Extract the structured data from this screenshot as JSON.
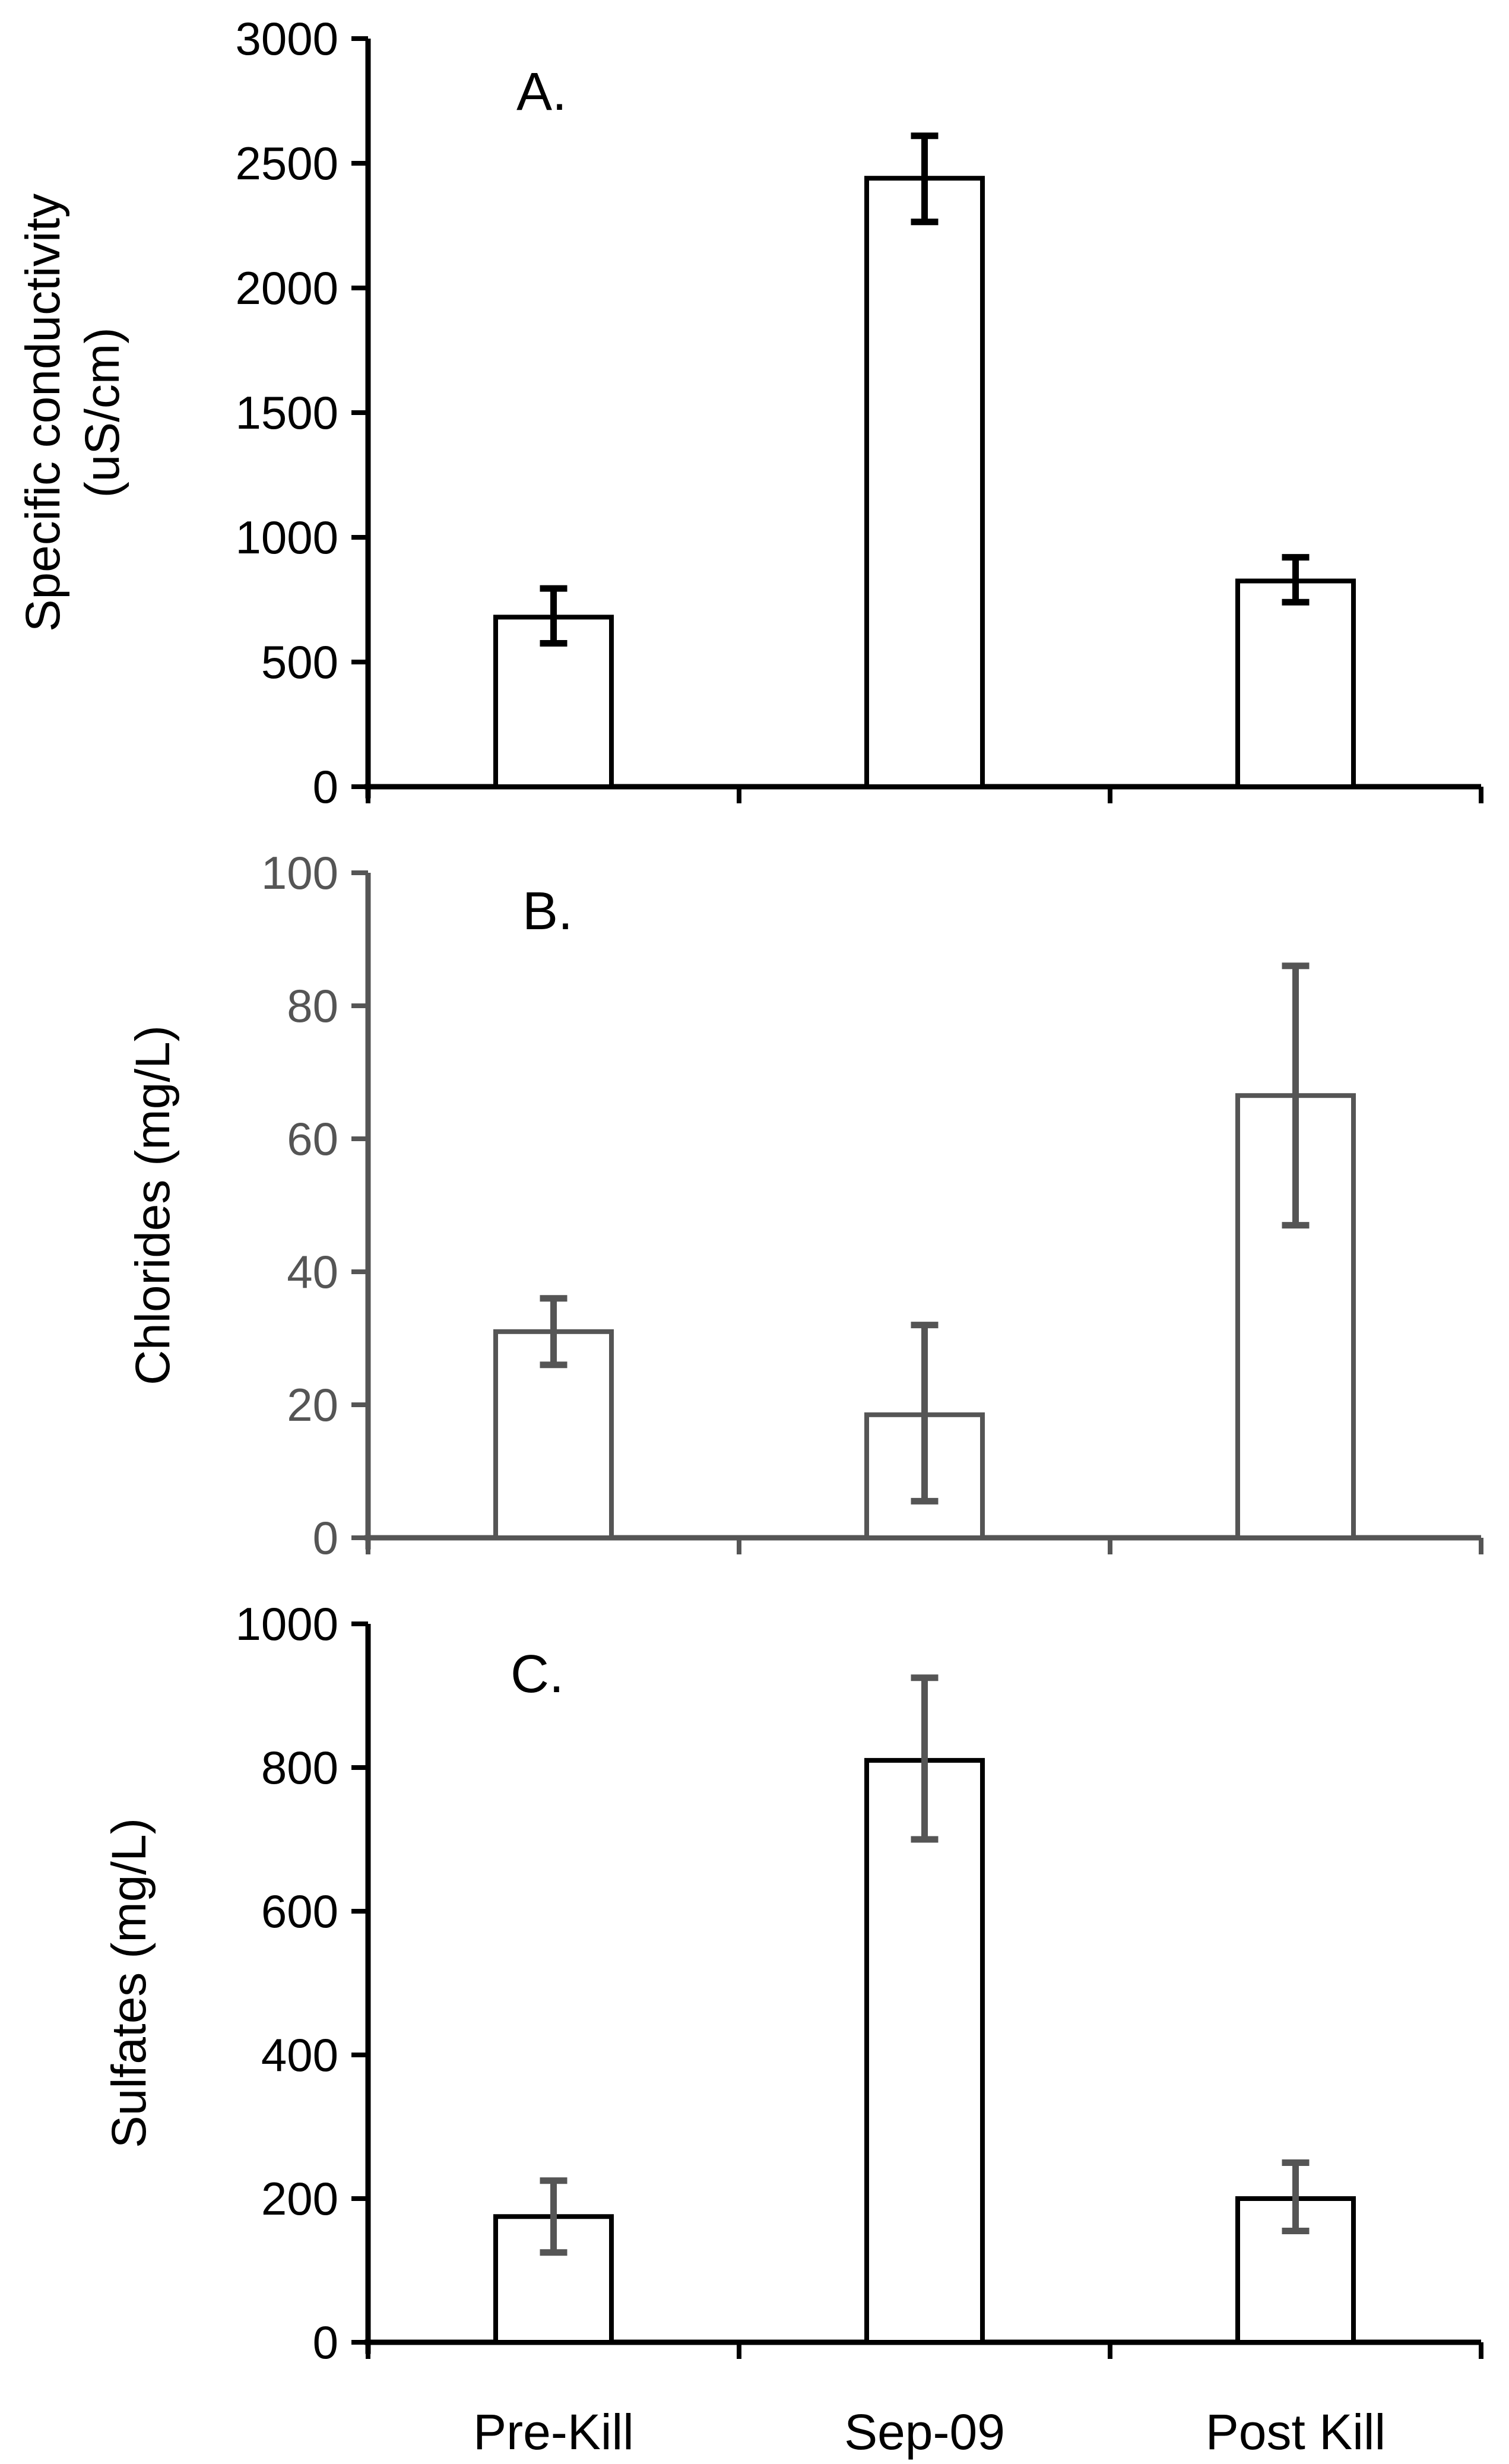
{
  "chart_data": [
    {
      "type": "bar",
      "panel_label": "A.",
      "title": "",
      "xlabel": "",
      "ylabel": "Specific conductivity (uS/cm)",
      "ylabel_lines": [
        "Specific conductivity",
        "(uS/cm)"
      ],
      "categories": [
        "Pre-Kill",
        "Sep-09",
        "Post Kill"
      ],
      "values": [
        680,
        2440,
        825
      ],
      "error_low": [
        575,
        2265,
        740
      ],
      "error_high": [
        795,
        2610,
        920
      ],
      "ylim": [
        0,
        3000
      ],
      "yticks": [
        0,
        500,
        1000,
        1500,
        2000,
        2500,
        3000
      ],
      "grid": false,
      "show_category_labels": false,
      "color": "#000000"
    },
    {
      "type": "bar",
      "panel_label": "B.",
      "title": "",
      "xlabel": "",
      "ylabel": "Chlorides (mg/L)",
      "ylabel_lines": [
        "Chlorides (mg/L)"
      ],
      "categories": [
        "Pre-Kill",
        "Sep-09",
        "Post Kill"
      ],
      "values": [
        31,
        18.5,
        66.5
      ],
      "error_low": [
        26,
        5.5,
        47
      ],
      "error_high": [
        36,
        32,
        86
      ],
      "ylim": [
        0,
        100
      ],
      "yticks": [
        0,
        20,
        40,
        60,
        80,
        100
      ],
      "grid": false,
      "show_category_labels": false,
      "color": "#555555"
    },
    {
      "type": "bar",
      "panel_label": "C.",
      "title": "",
      "xlabel": "",
      "ylabel": "Sulfates (mg/L)",
      "ylabel_lines": [
        "Sulfates (mg/L)"
      ],
      "categories": [
        "Pre-Kill",
        "Sep-09",
        "Post Kill"
      ],
      "values": [
        175,
        810,
        200
      ],
      "error_low": [
        125,
        700,
        155
      ],
      "error_high": [
        225,
        925,
        250
      ],
      "ylim": [
        0,
        1000
      ],
      "yticks": [
        0,
        200,
        400,
        600,
        800,
        1000
      ],
      "grid": false,
      "show_category_labels": true,
      "color": "#000000",
      "error_color": "#555555"
    }
  ]
}
